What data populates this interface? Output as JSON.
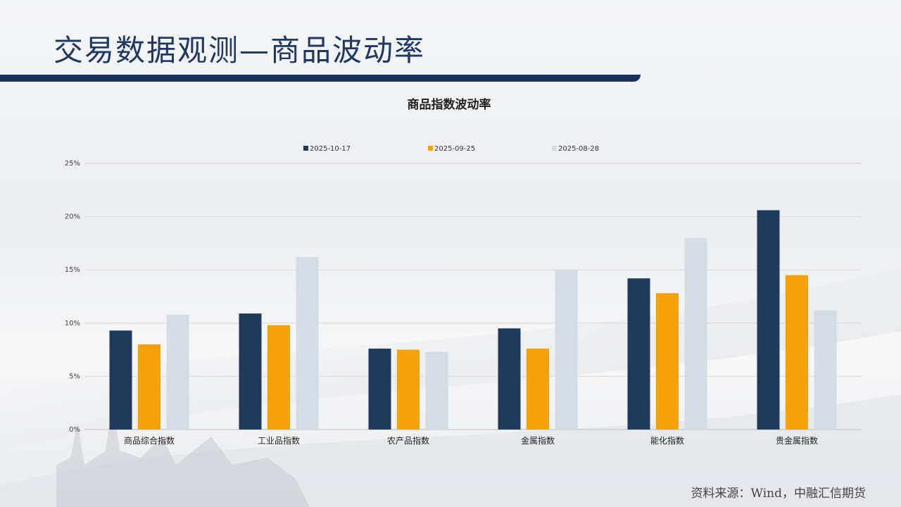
{
  "header": {
    "title": "交易数据观测—商品波动率"
  },
  "footer": {
    "source": "资料来源：Wind，中融汇信期货"
  },
  "colors": {
    "title": "#1f3864",
    "title_bar": "#17305c",
    "series": [
      "#1f3a5a",
      "#f5a20a",
      "#d6dce4"
    ]
  },
  "chart_data": {
    "type": "bar",
    "title": "商品指数波动率",
    "categories": [
      "商品综合指数",
      "工业品指数",
      "农产品指数",
      "金属指数",
      "能化指数",
      "贵金属指数"
    ],
    "series": [
      {
        "name": "2025-10-17",
        "values": [
          9.3,
          10.9,
          7.6,
          9.5,
          14.2,
          20.6
        ]
      },
      {
        "name": "2025-09-25",
        "values": [
          8.0,
          9.8,
          7.5,
          7.6,
          12.8,
          14.5
        ]
      },
      {
        "name": "2025-08-28",
        "values": [
          10.8,
          16.2,
          7.3,
          15.0,
          18.0,
          11.2
        ]
      }
    ],
    "ylim": [
      0,
      25
    ],
    "yticks": [
      0,
      5,
      10,
      15,
      20,
      25
    ],
    "ytick_labels": [
      "0%",
      "5%",
      "10%",
      "15%",
      "20%",
      "25%"
    ],
    "grid": true,
    "legend_position": "top"
  }
}
